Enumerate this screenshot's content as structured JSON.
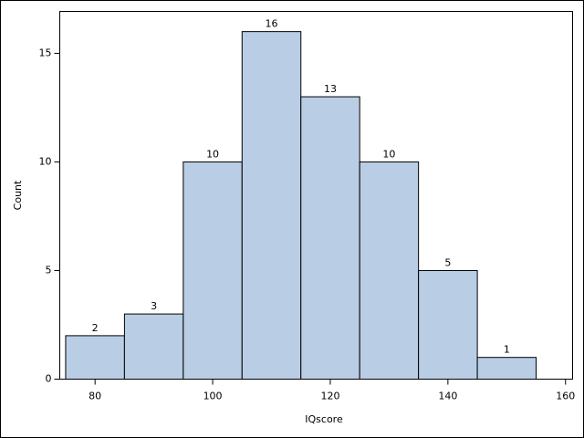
{
  "chart_data": {
    "type": "histogram",
    "x_label": "IQscore",
    "y_label": "Count",
    "bins": [
      75,
      85,
      95,
      105,
      115,
      125,
      135,
      145,
      155
    ],
    "values": [
      2,
      3,
      10,
      16,
      13,
      10,
      5,
      1
    ],
    "color": "#b9cde5",
    "xlim": [
      74,
      161.2
    ],
    "xticks": [
      80,
      100,
      120,
      140,
      160
    ],
    "ylim": [
      0,
      16.93
    ],
    "yticks": [
      0,
      5,
      10,
      15
    ]
  }
}
